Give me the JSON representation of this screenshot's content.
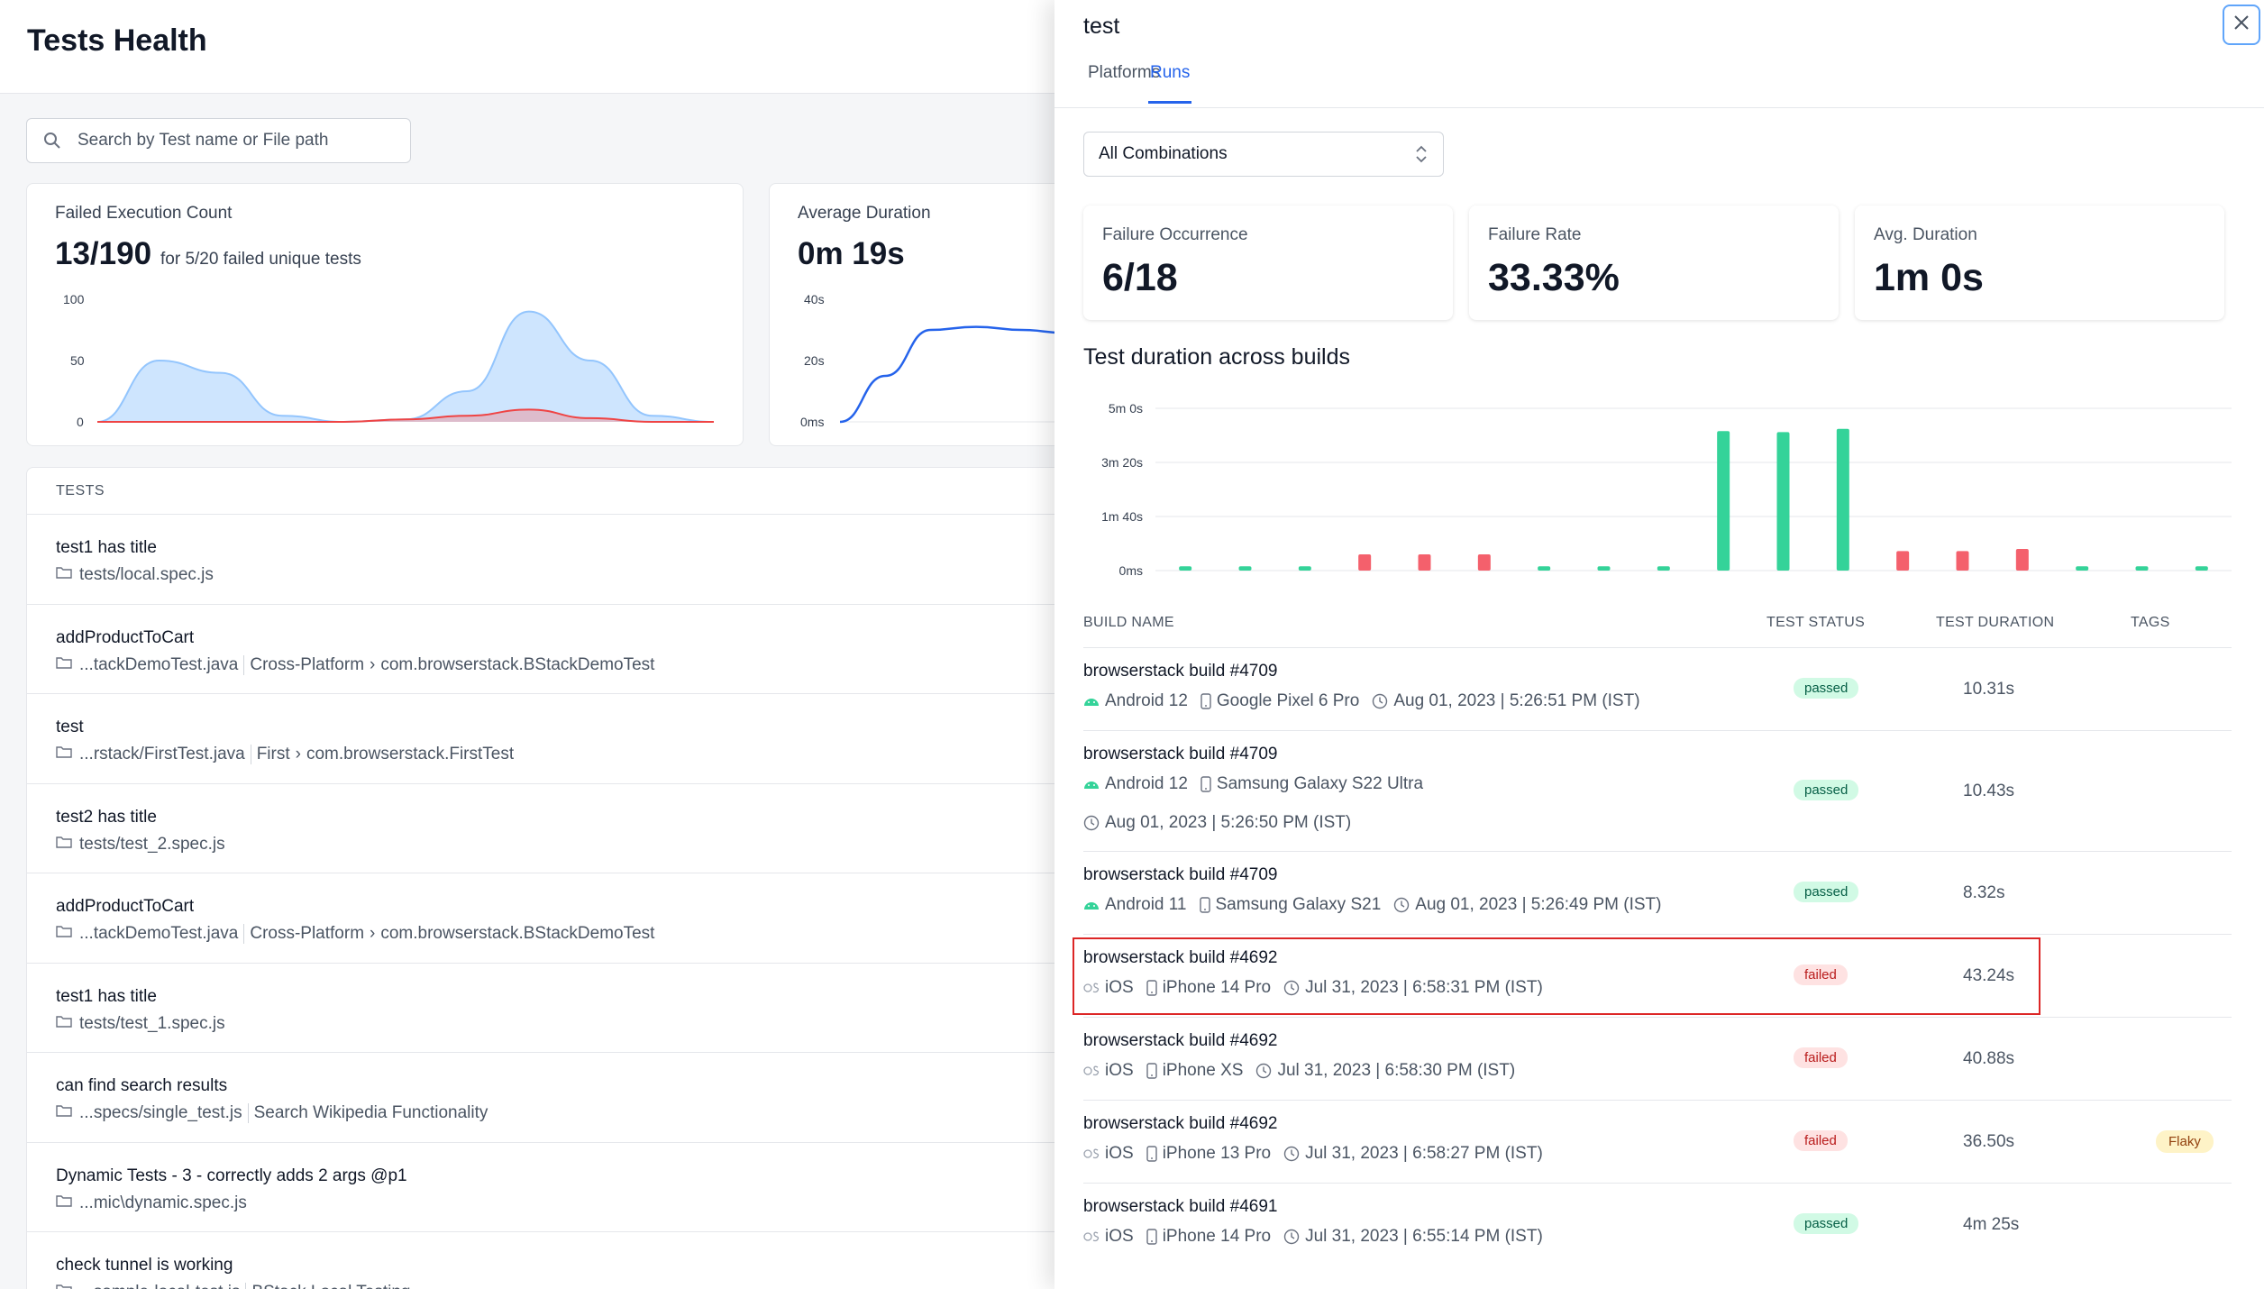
{
  "page": {
    "title": "Tests Health",
    "search_placeholder": "Search by Test name or File path"
  },
  "cards": {
    "failed": {
      "label": "Failed Execution Count",
      "value": "13/190",
      "sub": "for 5/20 failed unique tests",
      "yticks": [
        "100",
        "50",
        "0"
      ]
    },
    "avg": {
      "label": "Average Duration",
      "value": "0m 19s",
      "yticks": [
        "40s",
        "20s",
        "0ms"
      ]
    }
  },
  "tests": {
    "header": "TESTS",
    "rows": [
      {
        "name": "test1 has title",
        "path": [
          "tests/local.spec.js"
        ]
      },
      {
        "name": "addProductToCart",
        "path": [
          "...tackDemoTest.java",
          "Cross-Platform",
          "com.browserstack.BStackDemoTest"
        ]
      },
      {
        "name": "test",
        "path": [
          "...rstack/FirstTest.java",
          "First",
          "com.browserstack.FirstTest"
        ]
      },
      {
        "name": "test2 has title",
        "path": [
          "tests/test_2.spec.js"
        ]
      },
      {
        "name": "addProductToCart",
        "path": [
          "...tackDemoTest.java",
          "Cross-Platform",
          "com.browserstack.BStackDemoTest"
        ]
      },
      {
        "name": "test1 has title",
        "path": [
          "tests/test_1.spec.js"
        ]
      },
      {
        "name": "can find search results",
        "path": [
          "...specs/single_test.js",
          "Search Wikipedia Functionality"
        ]
      },
      {
        "name": "Dynamic Tests - 3 - correctly adds 2 args @p1",
        "path": [
          "...mic\\dynamic.spec.js"
        ]
      },
      {
        "name": "check tunnel is working",
        "path": [
          "...sample-local-test.js",
          "BStack Local Testing"
        ]
      }
    ]
  },
  "drawer": {
    "title": "test",
    "tabs": [
      "Platforms",
      "Runs"
    ],
    "active_tab": "Runs",
    "select_value": "All Combinations",
    "stats": [
      {
        "label": "Failure Occurrence",
        "value": "6/18"
      },
      {
        "label": "Failure Rate",
        "value": "33.33%"
      },
      {
        "label": "Avg. Duration",
        "value": "1m 0s"
      }
    ],
    "chart_title": "Test duration across builds",
    "table_headers": {
      "build": "BUILD NAME",
      "status": "TEST STATUS",
      "duration": "TEST DURATION",
      "tags": "TAGS"
    },
    "runs": [
      {
        "build": "browserstack build #4709",
        "os": "Android 12",
        "device": "Google Pixel 6 Pro",
        "time": "Aug 01, 2023 | 5:26:51 PM (IST)",
        "status": "passed",
        "duration": "10.31s",
        "tag": "",
        "wrap": false
      },
      {
        "build": "browserstack build #4709",
        "os": "Android 12",
        "device": "Samsung Galaxy S22 Ultra",
        "time": "Aug 01, 2023 | 5:26:50 PM (IST)",
        "status": "passed",
        "duration": "10.43s",
        "tag": "",
        "wrap": true
      },
      {
        "build": "browserstack build #4709",
        "os": "Android 11",
        "device": "Samsung Galaxy S21",
        "time": "Aug 01, 2023 | 5:26:49 PM (IST)",
        "status": "passed",
        "duration": "8.32s",
        "tag": "",
        "wrap": false
      },
      {
        "build": "browserstack build #4692",
        "os": "iOS",
        "device": "iPhone 14 Pro",
        "time": "Jul 31, 2023 | 6:58:31 PM (IST)",
        "status": "failed",
        "duration": "43.24s",
        "tag": "",
        "wrap": false
      },
      {
        "build": "browserstack build #4692",
        "os": "iOS",
        "device": "iPhone XS",
        "time": "Jul 31, 2023 | 6:58:30 PM (IST)",
        "status": "failed",
        "duration": "40.88s",
        "tag": "",
        "wrap": false
      },
      {
        "build": "browserstack build #4692",
        "os": "iOS",
        "device": "iPhone 13 Pro",
        "time": "Jul 31, 2023 | 6:58:27 PM (IST)",
        "status": "failed",
        "duration": "36.50s",
        "tag": "Flaky",
        "wrap": false
      },
      {
        "build": "browserstack build #4691",
        "os": "iOS",
        "device": "iPhone 14 Pro",
        "time": "Jul 31, 2023 | 6:55:14 PM (IST)",
        "status": "passed",
        "duration": "4m 25s",
        "tag": "",
        "wrap": false
      }
    ],
    "colors": {
      "passed": "#34d399",
      "failed": "#f4606c",
      "accent": "#2563eb"
    }
  },
  "chart_data": [
    {
      "type": "area",
      "title": "Failed Execution Count",
      "ylim": [
        0,
        100
      ],
      "yticks": [
        "100",
        "50",
        "0"
      ],
      "series": [
        {
          "values": [
            0,
            50,
            40,
            5,
            0,
            2,
            25,
            90,
            50,
            5,
            0
          ]
        },
        {
          "values": [
            0,
            0,
            0,
            0,
            0,
            2,
            5,
            10,
            3,
            0,
            0
          ]
        }
      ]
    },
    {
      "type": "line",
      "title": "Average Duration",
      "yticks": [
        "40s",
        "20s",
        "0ms"
      ],
      "series": [
        {
          "values": [
            0,
            15,
            30,
            31,
            30,
            29,
            20
          ]
        }
      ]
    },
    {
      "type": "bar",
      "title": "Test duration across builds",
      "ylabel": "",
      "ylim_seconds": [
        0,
        300
      ],
      "yticks": [
        "5m 0s",
        "3m 20s",
        "1m 40s",
        "0ms"
      ],
      "values_seconds": [
        8,
        8,
        8,
        30,
        30,
        30,
        8,
        8,
        8,
        258,
        256,
        262,
        36,
        36,
        40,
        8,
        8,
        8
      ],
      "status": [
        "passed",
        "passed",
        "passed",
        "failed",
        "failed",
        "failed",
        "passed",
        "passed",
        "passed",
        "passed",
        "passed",
        "passed",
        "failed",
        "failed",
        "failed",
        "passed",
        "passed",
        "passed"
      ]
    }
  ]
}
